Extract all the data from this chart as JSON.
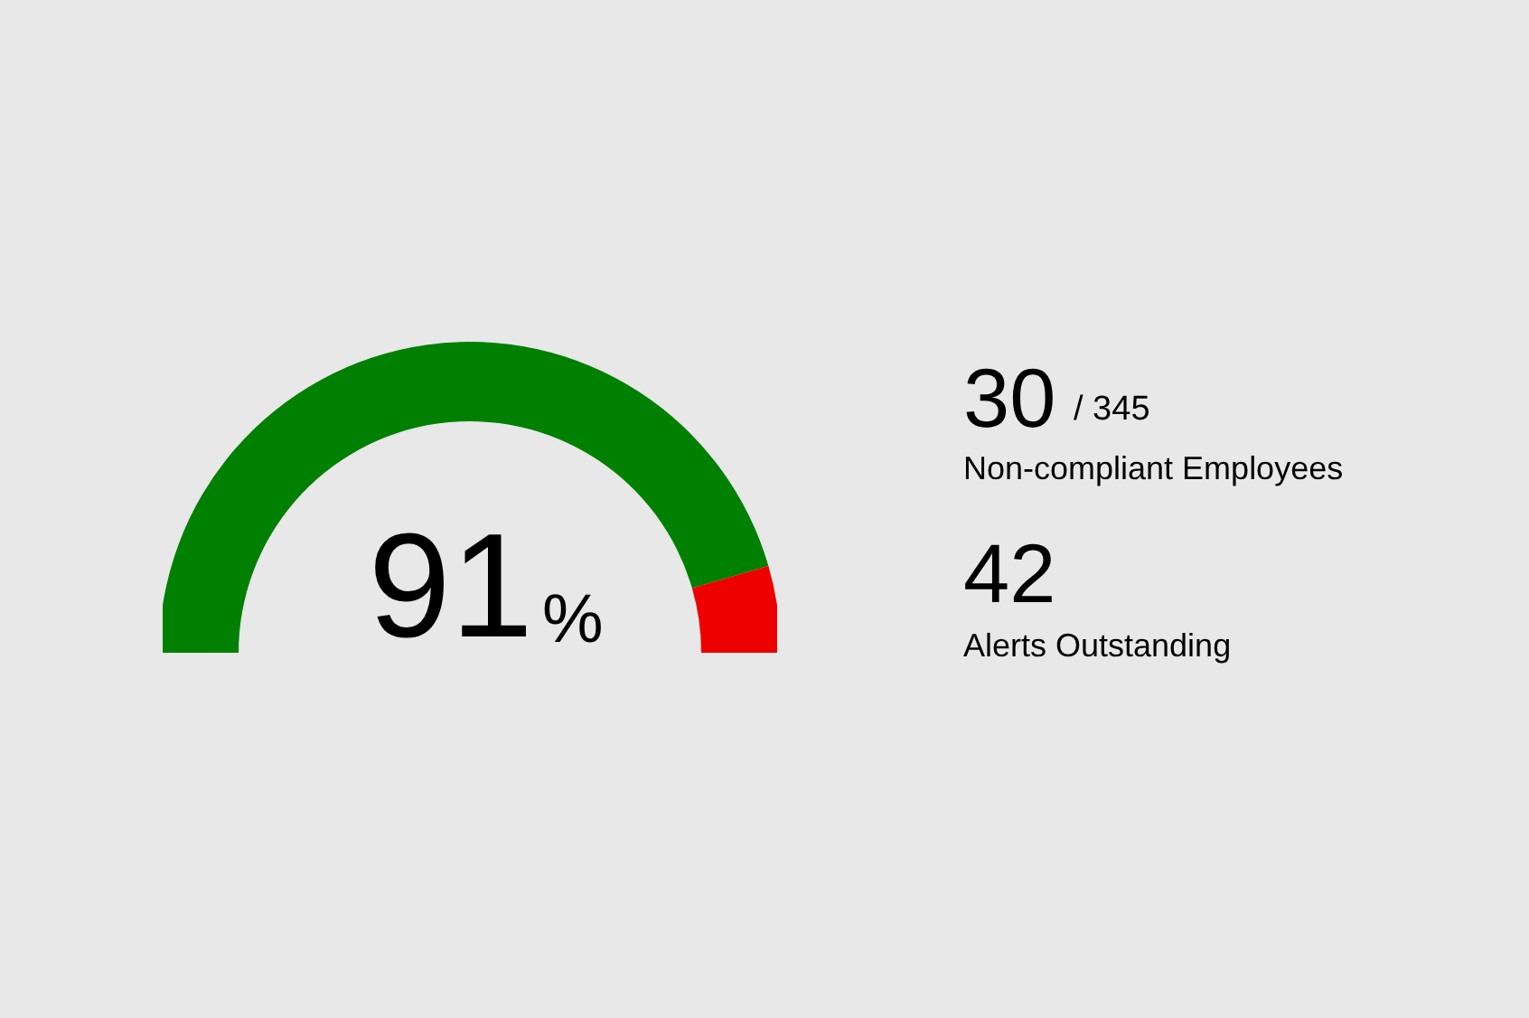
{
  "chart_data": [
    {
      "type": "donut",
      "categories": [
        null,
        null
      ],
      "values": [
        91,
        9
      ],
      "colors": [
        "#008000",
        "#ee0000"
      ],
      "annotations": [
        "91%"
      ]
    },
    {
      "type": "other",
      "annotations": [
        "30",
        "/ 345",
        "Non-compliant Employees",
        "42",
        "Alerts Outstanding"
      ]
    }
  ]
}
